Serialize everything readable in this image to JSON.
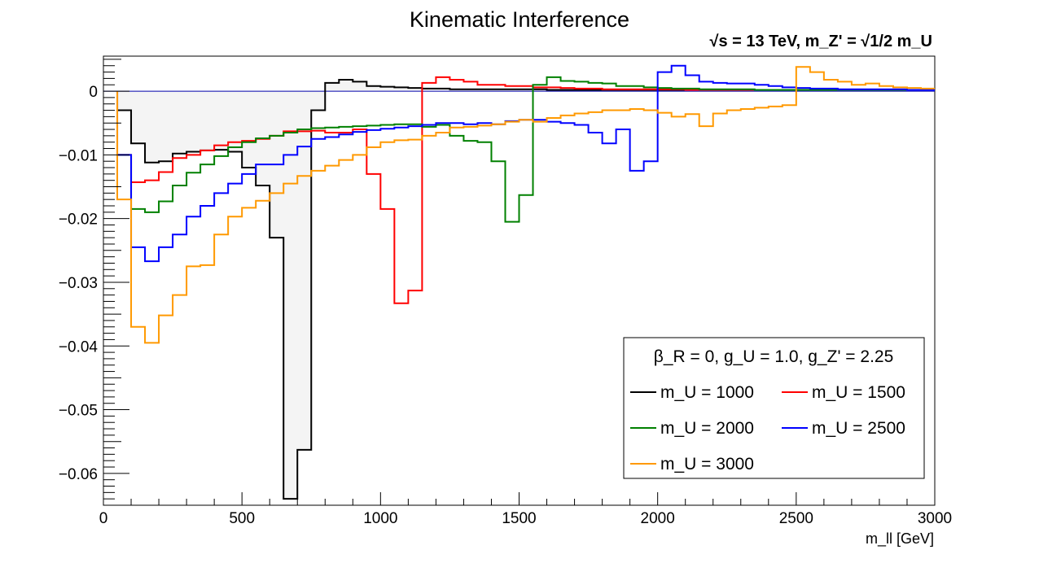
{
  "chart_data": {
    "type": "line",
    "title": "Kinematic Interference",
    "subtitle": "√s = 13 TeV, m_Z' = √1/2 m_U",
    "xlabel": "m_ll [GeV]",
    "ylabel": "",
    "xlim": [
      0,
      3000
    ],
    "ylim": [
      -0.065,
      0.0055
    ],
    "xticks": [
      0,
      500,
      1000,
      1500,
      2000,
      2500,
      3000
    ],
    "xtick_labels": [
      "0",
      "500",
      "1000",
      "1500",
      "2000",
      "2500",
      "3000"
    ],
    "yticks": [
      0,
      -0.01,
      -0.02,
      -0.03,
      -0.04,
      -0.05,
      -0.06
    ],
    "ytick_labels": [
      "0",
      "−0.01",
      "−0.02",
      "−0.03",
      "−0.04",
      "−0.05",
      "−0.06"
    ],
    "grid": false,
    "legend_position": "bottom-right",
    "legend_header": "β_R = 0, g_U = 1.0, g_Z' = 2.25",
    "bin_edges_start": 50,
    "bin_width": 50,
    "series": [
      {
        "name": "m_U = 1000",
        "color": "#000000",
        "values": [
          -0.003,
          -0.0082,
          -0.0112,
          -0.011,
          -0.0098,
          -0.0095,
          -0.0093,
          -0.0092,
          -0.0095,
          -0.012,
          -0.0148,
          -0.023,
          -0.064,
          -0.0563,
          -0.003,
          0.0013,
          0.0018,
          0.0015,
          0.0008,
          0.0007,
          0.0006,
          0.0005,
          0.0004,
          0.0004,
          0.0003,
          0.0003,
          0.0003,
          0.0003,
          0.0003,
          0.0003,
          0.0003,
          0.0002,
          0.0002,
          0.0002,
          0.0002,
          0.0002,
          0.0002,
          0.0002,
          0.0002,
          0.0002,
          0.0002,
          0.0002,
          0.0002,
          0.0002,
          0.0002,
          0.0002,
          0.0002,
          0.0002,
          0.0002,
          0.0002,
          0.0002,
          0.0002,
          0.0002,
          0.0002,
          0.0002,
          0.0002,
          0.0002,
          0.0002,
          0.0002
        ]
      },
      {
        "name": "m_U = 1500",
        "color": "#ff0000",
        "values": [
          -0.01,
          -0.0143,
          -0.014,
          -0.0127,
          -0.0105,
          -0.01,
          -0.0093,
          -0.0085,
          -0.008,
          -0.0078,
          -0.0075,
          -0.007,
          -0.0063,
          -0.0063,
          -0.0062,
          -0.0065,
          -0.0065,
          -0.006,
          -0.013,
          -0.0185,
          -0.0333,
          -0.0313,
          0.0013,
          0.0022,
          0.0018,
          0.0015,
          0.001,
          0.001,
          0.0008,
          0.0008,
          0.0006,
          0.0006,
          0.0005,
          0.0004,
          0.0004,
          0.0003,
          0.0003,
          0.0003,
          0.0003,
          0.0003,
          0.0003,
          0.0002,
          0.0002,
          0.0002,
          0.0002,
          0.0002,
          0.0002,
          0.0002,
          0.0002,
          0.0002,
          0.0002,
          0.0002,
          0.0002,
          0.0002,
          0.0002,
          0.0002,
          0.0002,
          0.0002,
          0.0002
        ]
      },
      {
        "name": "m_U = 2000",
        "color": "#008000",
        "values": [
          -0.01,
          -0.0185,
          -0.019,
          -0.0173,
          -0.0148,
          -0.0128,
          -0.0115,
          -0.0102,
          -0.0088,
          -0.008,
          -0.0074,
          -0.007,
          -0.0065,
          -0.006,
          -0.0058,
          -0.0057,
          -0.0056,
          -0.0055,
          -0.0054,
          -0.0053,
          -0.0052,
          -0.0052,
          -0.0056,
          -0.0053,
          -0.007,
          -0.0078,
          -0.008,
          -0.011,
          -0.0205,
          -0.0163,
          0.001,
          0.0022,
          0.0016,
          0.0015,
          0.0013,
          0.0012,
          0.0008,
          0.0008,
          0.0006,
          0.0005,
          0.0004,
          0.0004,
          0.0003,
          0.0003,
          0.0003,
          0.0003,
          0.0002,
          0.0002,
          0.0002,
          0.0002,
          0.0002,
          0.0002,
          0.0002,
          0.0002,
          0.0002,
          0.0002,
          0.0002,
          0.0002,
          0.0002
        ]
      },
      {
        "name": "m_U = 2500",
        "color": "#0000ff",
        "values": [
          -0.01,
          -0.0245,
          -0.0267,
          -0.0245,
          -0.0225,
          -0.0197,
          -0.018,
          -0.016,
          -0.0145,
          -0.013,
          -0.0115,
          -0.0115,
          -0.01,
          -0.0087,
          -0.0075,
          -0.0072,
          -0.0068,
          -0.0064,
          -0.0061,
          -0.0059,
          -0.0057,
          -0.0055,
          -0.0053,
          -0.005,
          -0.005,
          -0.0052,
          -0.005,
          -0.0052,
          -0.0047,
          -0.0045,
          -0.0045,
          -0.0048,
          -0.005,
          -0.0053,
          -0.0065,
          -0.0082,
          -0.006,
          -0.0125,
          -0.011,
          0.003,
          0.004,
          0.0025,
          0.0015,
          0.0013,
          0.0012,
          0.0012,
          0.001,
          0.0008,
          0.0006,
          0.0005,
          0.0004,
          0.0004,
          0.0003,
          0.0003,
          0.0003,
          0.0003,
          0.0003,
          0.0002,
          0.0002
        ]
      },
      {
        "name": "m_U = 3000",
        "color": "#ff9900",
        "values": [
          -0.017,
          -0.037,
          -0.0395,
          -0.0352,
          -0.032,
          -0.0275,
          -0.0273,
          -0.0225,
          -0.0197,
          -0.0183,
          -0.0172,
          -0.016,
          -0.0145,
          -0.0133,
          -0.0125,
          -0.0117,
          -0.0108,
          -0.01,
          -0.0088,
          -0.008,
          -0.0077,
          -0.0076,
          -0.007,
          -0.0065,
          -0.0057,
          -0.0056,
          -0.0054,
          -0.0052,
          -0.0048,
          -0.0045,
          -0.0048,
          -0.0042,
          -0.0038,
          -0.0035,
          -0.0033,
          -0.003,
          -0.003,
          -0.0028,
          -0.003,
          -0.0034,
          -0.004,
          -0.0036,
          -0.0055,
          -0.0035,
          -0.003,
          -0.0028,
          -0.0026,
          -0.0024,
          -0.0022,
          0.0038,
          0.003,
          0.0018,
          0.0015,
          0.001,
          0.0012,
          0.0008,
          0.0006,
          0.0005,
          0.0004
        ]
      }
    ]
  }
}
